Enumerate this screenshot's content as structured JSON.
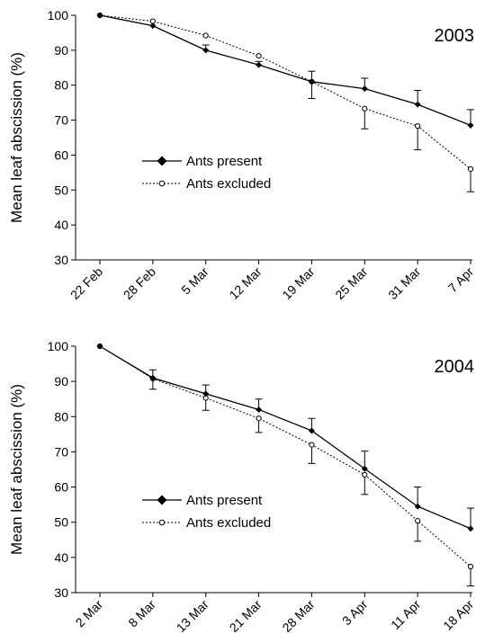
{
  "chart_data": [
    {
      "type": "line",
      "annotation": "2003",
      "ylabel": "Mean leaf abscission (%)",
      "ylim": [
        30,
        100
      ],
      "yticks": [
        "30",
        "40",
        "50",
        "60",
        "70",
        "80",
        "90",
        "100"
      ],
      "categories": [
        "22 Feb",
        "28 Feb",
        "5 Mar",
        "12 Mar",
        "19 Mar",
        "25 Mar",
        "31 Mar",
        "7 Apr"
      ],
      "legend_position": "center-left",
      "series": [
        {
          "name": "Ants present",
          "marker": "filled-diamond",
          "line": "solid",
          "values": [
            100,
            97,
            90,
            85.8,
            81,
            79,
            74.5,
            68.5
          ],
          "err": [
            0,
            0,
            1.5,
            1,
            3,
            3,
            4,
            4.5
          ]
        },
        {
          "name": "Ants excluded",
          "marker": "open-circle",
          "line": "dotted",
          "values": [
            100,
            98.3,
            94.2,
            88.4,
            81,
            73.3,
            68.3,
            56
          ],
          "err": [
            0,
            0,
            0,
            0,
            4.8,
            5.8,
            6.8,
            6.5
          ]
        }
      ]
    },
    {
      "type": "line",
      "annotation": "2004",
      "ylabel": "Mean leaf abscission (%)",
      "ylim": [
        30,
        100
      ],
      "yticks": [
        "30",
        "40",
        "50",
        "60",
        "70",
        "80",
        "90",
        "100"
      ],
      "categories": [
        "2 Mar",
        "8 Mar",
        "13 Mar",
        "21 Mar",
        "28 Mar",
        "3 Apr",
        "11 Apr",
        "18 Apr"
      ],
      "legend_position": "bottom-left",
      "series": [
        {
          "name": "Ants present",
          "marker": "filled-diamond",
          "line": "solid",
          "values": [
            100,
            91,
            86.5,
            82,
            76,
            65.2,
            54.5,
            48.2
          ],
          "err": [
            0,
            2.3,
            2.5,
            3,
            3.5,
            5,
            5.5,
            5.8
          ]
        },
        {
          "name": "Ants excluded",
          "marker": "open-circle",
          "line": "dotted",
          "values": [
            100,
            90.8,
            85.3,
            79.5,
            72,
            63.5,
            50.4,
            37.4
          ],
          "err": [
            0,
            3,
            3.5,
            4,
            5.3,
            5.6,
            5.8,
            5.5
          ]
        }
      ]
    }
  ]
}
